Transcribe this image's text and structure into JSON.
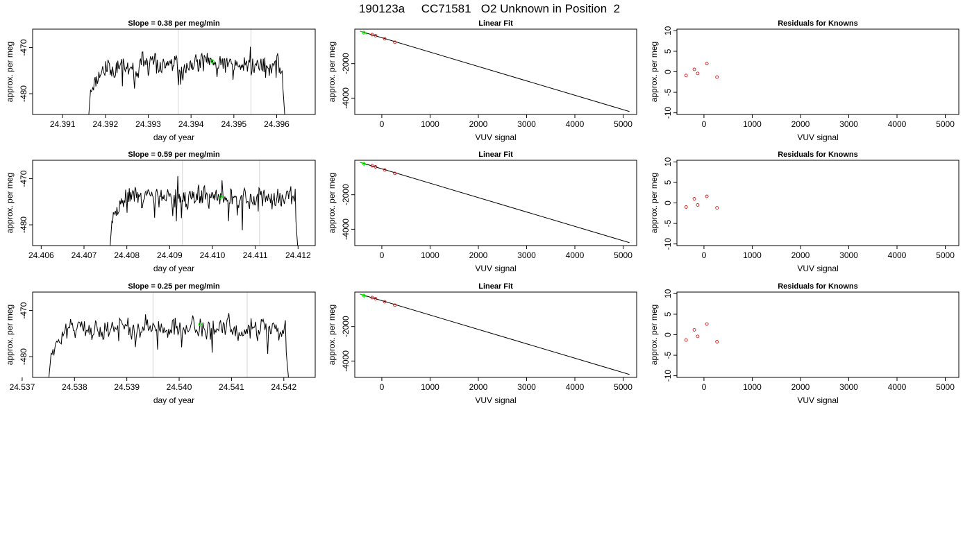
{
  "page_title": "190123a     CC71581   O2 Unknown in Position  2",
  "colors": {
    "trace": "#000000",
    "window": "#d3d3d3",
    "fit_point": "#00ff00",
    "known": "#cc0000"
  },
  "chart_data": [
    {
      "type": "line",
      "title": "Slope =  0.38  per meg/min",
      "xlabel": "day of year",
      "ylabel": "approx. per meg",
      "xlim": [
        24.3903,
        24.3969
      ],
      "ylim": [
        -484.5,
        -466.0
      ],
      "xticks": [
        "24.391",
        "24.392",
        "24.393",
        "24.394",
        "24.395",
        "24.396"
      ],
      "yticks": [
        "-470",
        "-480"
      ],
      "x_start": 24.3916,
      "x_end": 24.3962,
      "window_lines": [
        24.3937,
        24.3954
      ],
      "fit_point": [
        24.3945,
        -473.0
      ],
      "seed": 11
    },
    {
      "type": "line",
      "title": "Linear Fit",
      "xlabel": "VUV signal",
      "ylabel": "approx. per meg",
      "xlim": [
        -560,
        5280
      ],
      "ylim": [
        -4950,
        0
      ],
      "xticks": [
        "0",
        "1000",
        "2000",
        "3000",
        "4000",
        "5000"
      ],
      "yticks": [
        "-2000",
        "-4000"
      ],
      "fit_line": [
        [
          -450,
          -120
        ],
        [
          5130,
          -4780
        ]
      ],
      "knowns": [
        [
          -370,
          -200
        ],
        [
          -200,
          -320
        ],
        [
          -130,
          -380
        ],
        [
          60,
          -560
        ],
        [
          270,
          -760
        ]
      ],
      "fit_point": [
        -370,
        -210
      ]
    },
    {
      "type": "scatter",
      "title": "Residuals for Knowns",
      "xlabel": "VUV signal",
      "ylabel": "approx. per meg",
      "xlim": [
        -560,
        5280
      ],
      "ylim": [
        -10.4,
        10.4
      ],
      "xticks": [
        "0",
        "1000",
        "2000",
        "3000",
        "4000",
        "5000"
      ],
      "yticks": [
        "10",
        "5",
        "0",
        "-5",
        "-10"
      ],
      "points": [
        [
          -370,
          -0.9
        ],
        [
          -200,
          0.6
        ],
        [
          -130,
          -0.4
        ],
        [
          60,
          2.0
        ],
        [
          270,
          -1.3
        ]
      ]
    },
    {
      "type": "line",
      "title": "Slope =  0.59  per meg/min",
      "xlabel": "day of year",
      "ylabel": "approx. per meg",
      "xlim": [
        24.4058,
        24.4124
      ],
      "ylim": [
        -484.5,
        -466.0
      ],
      "xticks": [
        "24.406",
        "24.407",
        "24.408",
        "24.409",
        "24.410",
        "24.411",
        "24.412"
      ],
      "yticks": [
        "-470",
        "-480"
      ],
      "x_start": 24.4076,
      "x_end": 24.412,
      "window_lines": [
        24.4093,
        24.4111
      ],
      "fit_point": [
        24.4102,
        -474.0
      ],
      "seed": 29
    },
    {
      "type": "line",
      "title": "Linear Fit",
      "xlabel": "VUV signal",
      "ylabel": "approx. per meg",
      "xlim": [
        -560,
        5280
      ],
      "ylim": [
        -4950,
        0
      ],
      "xticks": [
        "0",
        "1000",
        "2000",
        "3000",
        "4000",
        "5000"
      ],
      "yticks": [
        "-2000",
        "-4000"
      ],
      "fit_line": [
        [
          -450,
          -120
        ],
        [
          5130,
          -4780
        ]
      ],
      "knowns": [
        [
          -370,
          -200
        ],
        [
          -200,
          -320
        ],
        [
          -130,
          -380
        ],
        [
          60,
          -560
        ],
        [
          270,
          -760
        ]
      ],
      "fit_point": [
        -370,
        -210
      ]
    },
    {
      "type": "scatter",
      "title": "Residuals for Knowns",
      "xlabel": "VUV signal",
      "ylabel": "approx. per meg",
      "xlim": [
        -560,
        5280
      ],
      "ylim": [
        -10.4,
        10.4
      ],
      "xticks": [
        "0",
        "1000",
        "2000",
        "3000",
        "4000",
        "5000"
      ],
      "yticks": [
        "10",
        "5",
        "0",
        "-5",
        "-10"
      ],
      "points": [
        [
          -370,
          -1.0
        ],
        [
          -200,
          1.0
        ],
        [
          -130,
          -0.5
        ],
        [
          60,
          1.6
        ],
        [
          270,
          -1.2
        ]
      ]
    },
    {
      "type": "line",
      "title": "Slope =  0.25  per meg/min",
      "xlabel": "day of year",
      "ylabel": "approx. per meg",
      "xlim": [
        24.5372,
        24.5426
      ],
      "ylim": [
        -484.5,
        -466.0
      ],
      "xticks": [
        "24.537",
        "24.538",
        "24.539",
        "24.540",
        "24.541",
        "24.542"
      ],
      "yticks": [
        "-470",
        "-480"
      ],
      "x_start": 24.5375,
      "x_end": 24.5421,
      "window_lines": [
        24.5395,
        24.5413
      ],
      "fit_point": [
        24.5404,
        -473.0
      ],
      "seed": 47
    },
    {
      "type": "line",
      "title": "Linear Fit",
      "xlabel": "VUV signal",
      "ylabel": "approx. per meg",
      "xlim": [
        -560,
        5280
      ],
      "ylim": [
        -4950,
        0
      ],
      "xticks": [
        "0",
        "1000",
        "2000",
        "3000",
        "4000",
        "5000"
      ],
      "yticks": [
        "-2000",
        "-4000"
      ],
      "fit_line": [
        [
          -450,
          -120
        ],
        [
          5130,
          -4780
        ]
      ],
      "knowns": [
        [
          -370,
          -200
        ],
        [
          -200,
          -320
        ],
        [
          -130,
          -380
        ],
        [
          60,
          -560
        ],
        [
          270,
          -760
        ]
      ],
      "fit_point": [
        -370,
        -210
      ]
    },
    {
      "type": "scatter",
      "title": "Residuals for Knowns",
      "xlabel": "VUV signal",
      "ylabel": "approx. per meg",
      "xlim": [
        -560,
        5280
      ],
      "ylim": [
        -10.4,
        10.4
      ],
      "xticks": [
        "0",
        "1000",
        "2000",
        "3000",
        "4000",
        "5000"
      ],
      "yticks": [
        "10",
        "5",
        "0",
        "-5",
        "-10"
      ],
      "points": [
        [
          -370,
          -1.3
        ],
        [
          -200,
          1.2
        ],
        [
          -130,
          -0.4
        ],
        [
          60,
          2.6
        ],
        [
          270,
          -1.7
        ]
      ]
    }
  ]
}
